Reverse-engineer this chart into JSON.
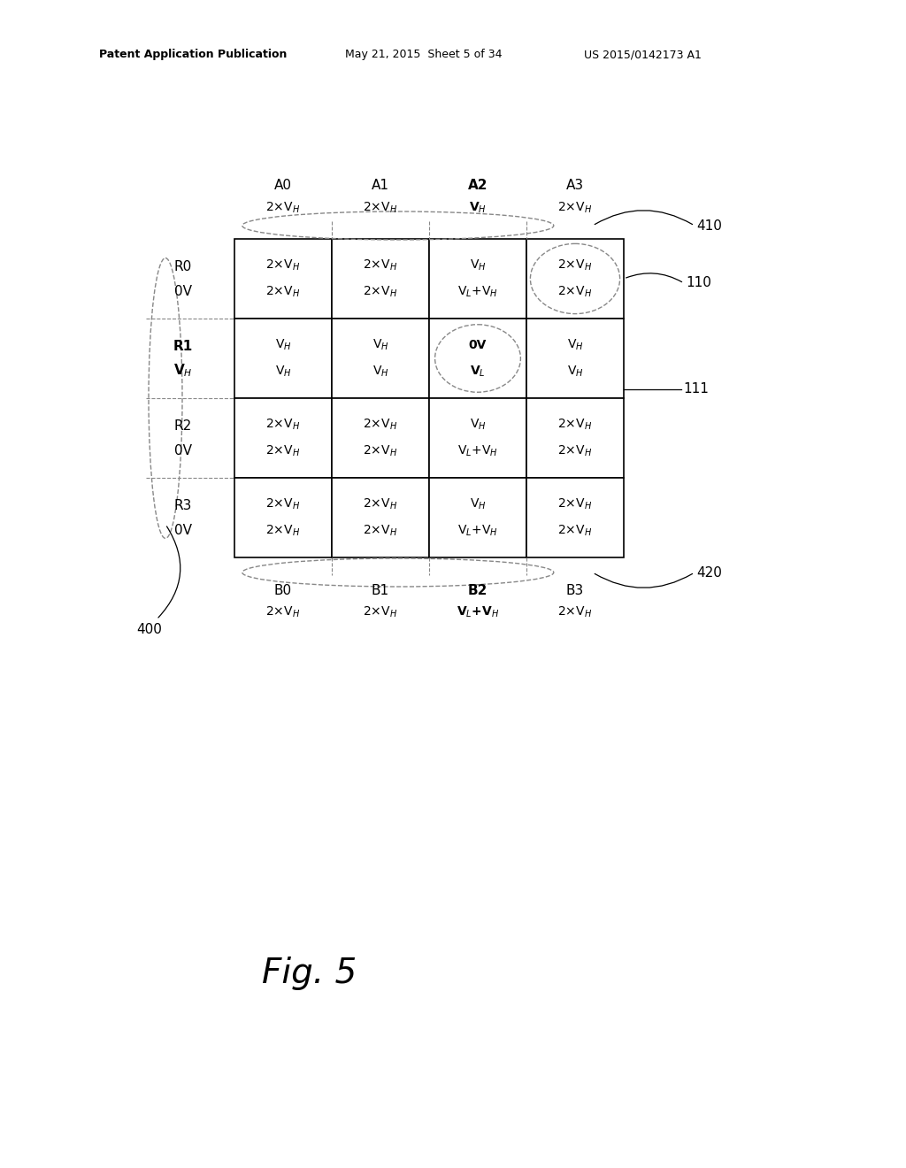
{
  "bg_color": "#ffffff",
  "header_left": "Patent Application Publication",
  "header_mid": "May 21, 2015  Sheet 5 of 34",
  "header_right": "US 2015/0142173 A1",
  "fig_label": "Fig. 5",
  "col_labels": [
    "A0",
    "A1",
    "A2",
    "A3"
  ],
  "col_sublabels": [
    "2×V$_H$",
    "2×V$_H$",
    "V$_H$",
    "2×V$_H$"
  ],
  "col_bold": [
    false,
    false,
    true,
    false
  ],
  "col_sublabel_bold": [
    false,
    false,
    true,
    false
  ],
  "row_labels": [
    [
      "R0",
      "0V"
    ],
    [
      "R1",
      "V$_H$"
    ],
    [
      "R2",
      "0V"
    ],
    [
      "R3",
      "0V"
    ]
  ],
  "row_label_bold": [
    [
      false,
      false
    ],
    [
      true,
      true
    ],
    [
      false,
      false
    ],
    [
      false,
      false
    ]
  ],
  "bot_labels": [
    "B0",
    "B1",
    "B2",
    "B3"
  ],
  "bot_sublabels": [
    "2×V$_H$",
    "2×V$_H$",
    "V$_L$+V$_H$",
    "2×V$_H$"
  ],
  "bot_bold": [
    false,
    false,
    true,
    false
  ],
  "bot_sublabel_bold": [
    false,
    false,
    true,
    false
  ],
  "cell_contents": [
    [
      [
        "2×V$_H$",
        "2×V$_H$"
      ],
      [
        "2×V$_H$",
        "2×V$_H$"
      ],
      [
        "V$_H$",
        "V$_L$+V$_H$"
      ],
      [
        "2×V$_H$",
        "2×V$_H$"
      ]
    ],
    [
      [
        "V$_H$",
        "V$_H$"
      ],
      [
        "V$_H$",
        "V$_H$"
      ],
      [
        "0V",
        "V$_L$"
      ],
      [
        "V$_H$",
        "V$_H$"
      ]
    ],
    [
      [
        "2×V$_H$",
        "2×V$_H$"
      ],
      [
        "2×V$_H$",
        "2×V$_H$"
      ],
      [
        "V$_H$",
        "V$_L$+V$_H$"
      ],
      [
        "2×V$_H$",
        "2×V$_H$"
      ]
    ],
    [
      [
        "2×V$_H$",
        "2×V$_H$"
      ],
      [
        "2×V$_H$",
        "2×V$_H$"
      ],
      [
        "V$_H$",
        "V$_L$+V$_H$"
      ],
      [
        "2×V$_H$",
        "2×V$_H$"
      ]
    ]
  ],
  "cell_bold": [
    [
      [
        false,
        false
      ],
      [
        false,
        false
      ],
      [
        false,
        false
      ],
      [
        false,
        false
      ]
    ],
    [
      [
        false,
        false
      ],
      [
        false,
        false
      ],
      [
        true,
        true
      ],
      [
        false,
        false
      ]
    ],
    [
      [
        false,
        false
      ],
      [
        false,
        false
      ],
      [
        false,
        false
      ],
      [
        false,
        false
      ]
    ],
    [
      [
        false,
        false
      ],
      [
        false,
        false
      ],
      [
        false,
        false
      ],
      [
        false,
        false
      ]
    ]
  ],
  "label_410": "410",
  "label_420": "420",
  "label_110": "110",
  "label_111": "111",
  "label_400": "400"
}
